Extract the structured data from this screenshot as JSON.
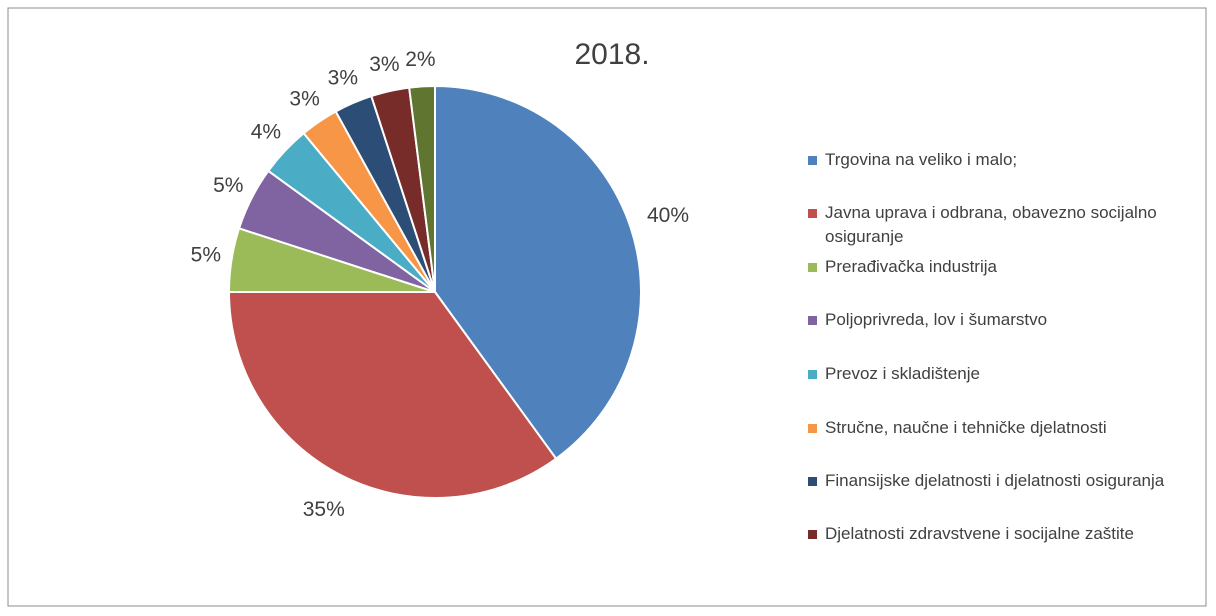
{
  "chart_data": {
    "type": "pie",
    "title": "2018.",
    "categories": [
      "Trgovina na veliko i malo;",
      "Javna uprava i odbrana, obavezno socijalno osiguranje",
      "Prerađivačka industrija",
      "Poljoprivreda, lov i šumarstvo",
      "Prevoz i skladištenje",
      "Stručne, naučne i tehničke djelatnosti",
      "Finansijske djelatnosti i djelatnosti osiguranja",
      "Djelatnosti zdravstvene i socijalne zaštite",
      null
    ],
    "values": [
      40,
      35,
      5,
      5,
      4,
      3,
      3,
      3,
      2
    ],
    "value_labels": [
      "40%",
      "35%",
      "5%",
      "5%",
      "4%",
      "3%",
      "3%",
      "3%",
      "2%"
    ],
    "colors": [
      "#4f81bd",
      "#c0504d",
      "#9bbb59",
      "#8064a2",
      "#4bacc6",
      "#f79646",
      "#2c4d75",
      "#772c2a",
      "#5f7530"
    ],
    "legend": "right"
  }
}
